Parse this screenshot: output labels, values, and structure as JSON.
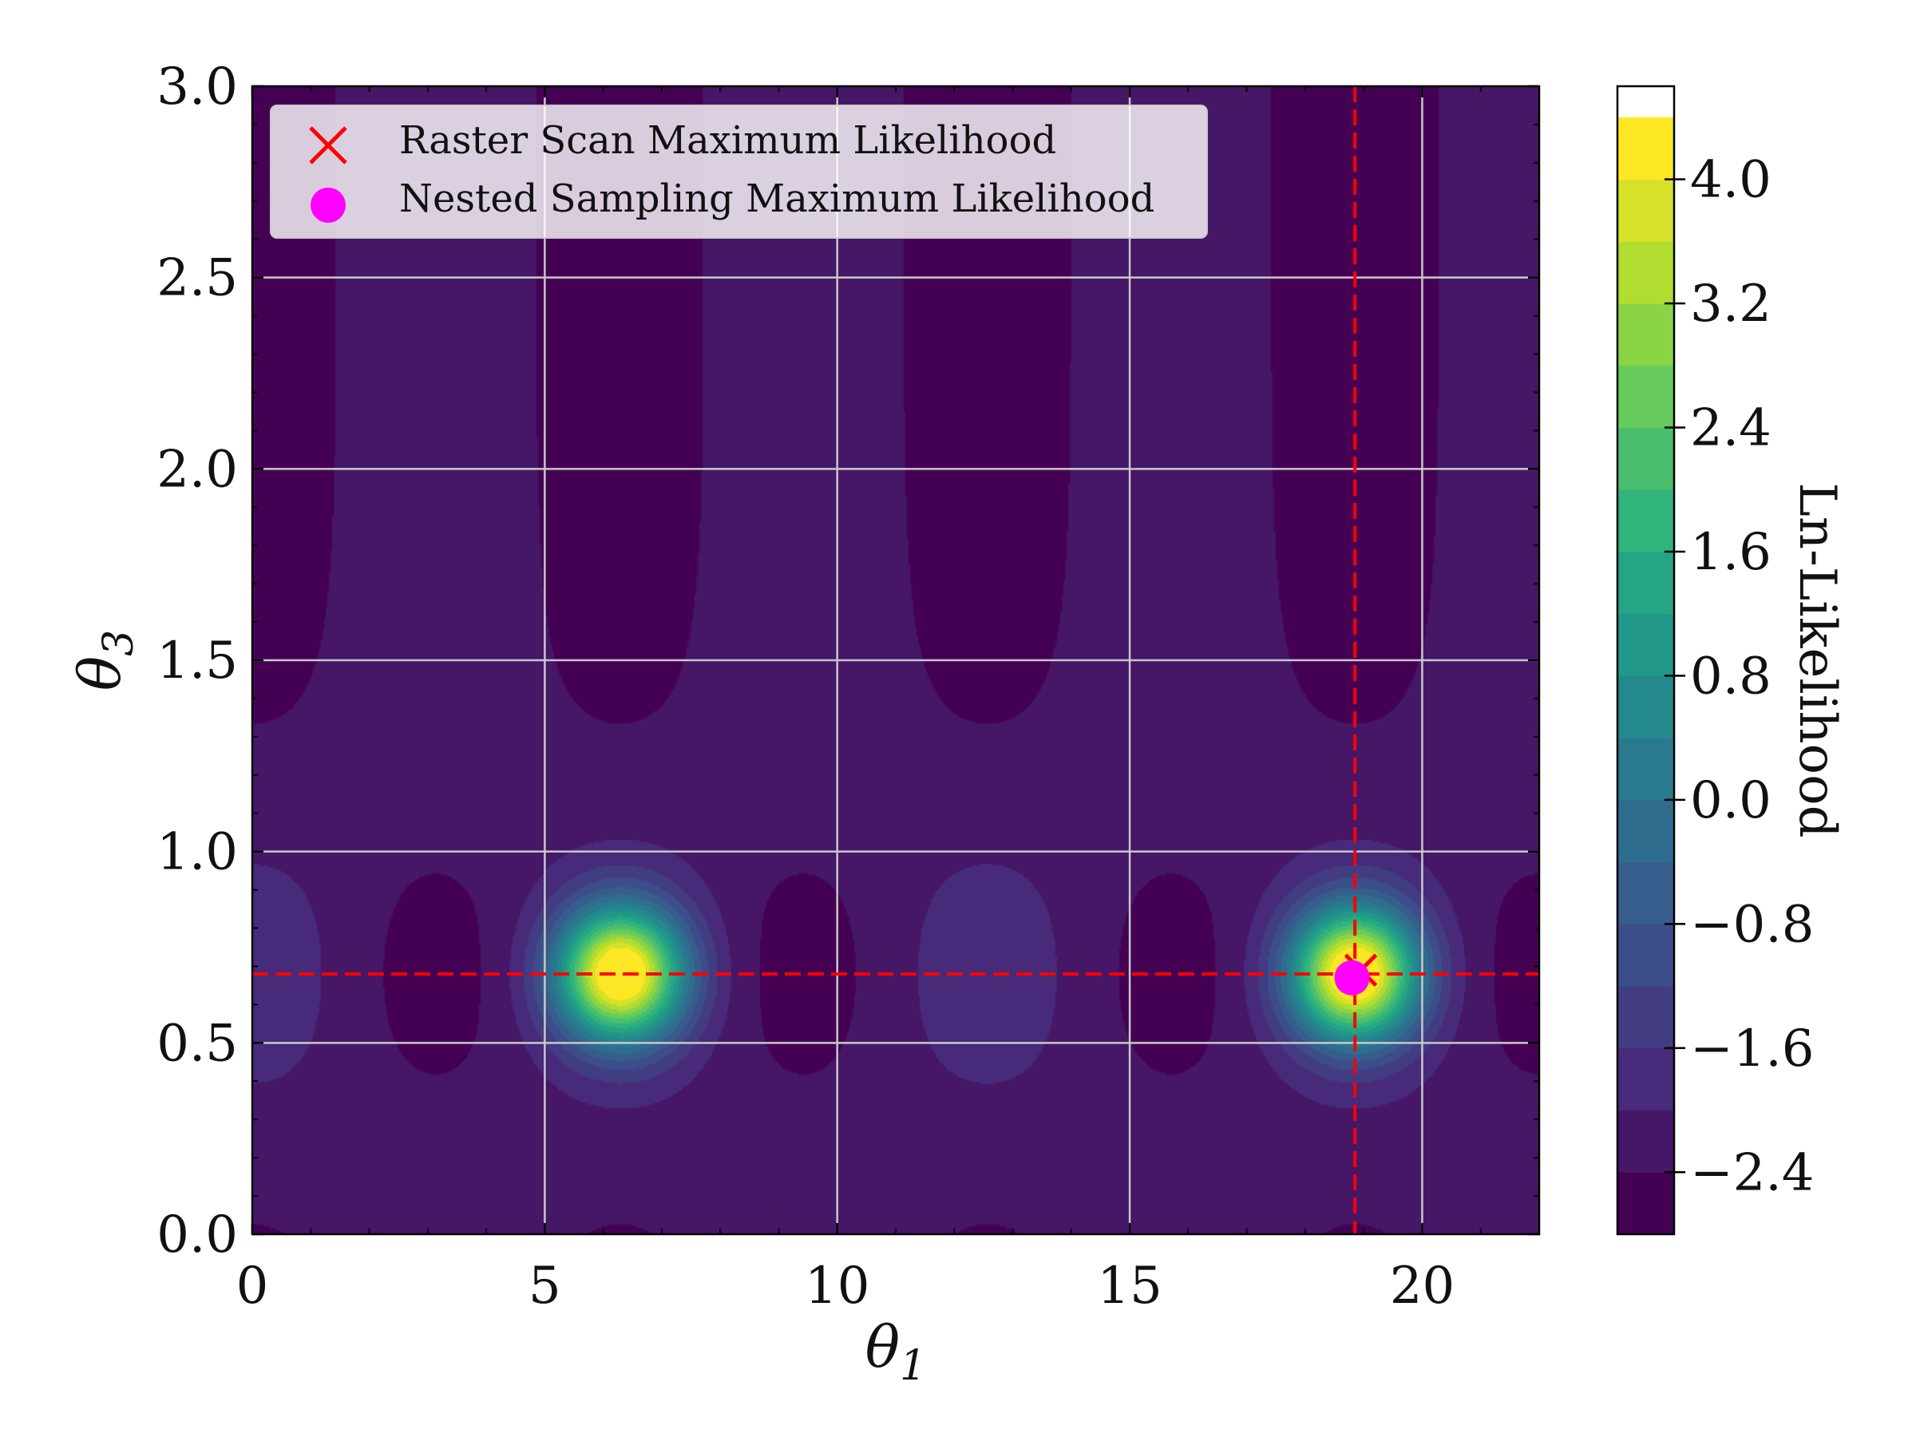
{
  "chart_data": {
    "type": "heatmap",
    "plot_kind": "filled contour",
    "title": "",
    "xlabel": "θ",
    "xlabel_sub": "1",
    "ylabel": "θ",
    "ylabel_sub": "3",
    "xlim": [
      0,
      22
    ],
    "ylim": [
      0.0,
      3.0
    ],
    "xticks": [
      0,
      5,
      10,
      15,
      20
    ],
    "xtick_labels": [
      "0",
      "5",
      "10",
      "15",
      "20"
    ],
    "yticks": [
      0.0,
      0.5,
      1.0,
      1.5,
      2.0,
      2.5,
      3.0
    ],
    "ytick_labels": [
      "0.0",
      "0.5",
      "1.0",
      "1.5",
      "2.0",
      "2.5",
      "3.0"
    ],
    "grid": true,
    "colormap": "viridis",
    "colorbar": {
      "label": "Ln-Likelihood",
      "range": [
        -2.8,
        4.6
      ],
      "level_step": 0.4,
      "ticks": [
        -2.4,
        -1.6,
        -0.8,
        0.0,
        0.8,
        1.6,
        2.4,
        3.2,
        4.0
      ],
      "tick_labels": [
        "−2.4",
        "−1.6",
        "−0.8",
        "0.0",
        "0.8",
        "1.6",
        "2.4",
        "3.2",
        "4.0"
      ]
    },
    "peaks": [
      {
        "theta1": 6.3,
        "theta3": 0.68,
        "ln_likelihood": 4.4
      },
      {
        "theta1": 18.85,
        "theta3": 0.68,
        "ln_likelihood": 4.4
      }
    ],
    "reference_lines": {
      "vertical_theta1": 18.85,
      "horizontal_theta3": 0.68,
      "color": "#ff0000",
      "style": "dashed"
    },
    "markers": [
      {
        "label": "Raster Scan Maximum Likelihood",
        "symbol": "x",
        "color": "#ff0000",
        "theta1": 18.95,
        "theta3": 0.69
      },
      {
        "label": "Nested Sampling Maximum Likelihood",
        "symbol": "circle",
        "color": "#ff00ff",
        "theta1": 18.8,
        "theta3": 0.67
      }
    ],
    "legend_position": "upper-left"
  },
  "legend": {
    "raster_label": "Raster Scan Maximum Likelihood",
    "nested_label": "Nested Sampling Maximum Likelihood"
  },
  "colors": {
    "raster_marker": "#ff0000",
    "nested_marker": "#ff00ff",
    "gridline": "#c8c8c8"
  }
}
